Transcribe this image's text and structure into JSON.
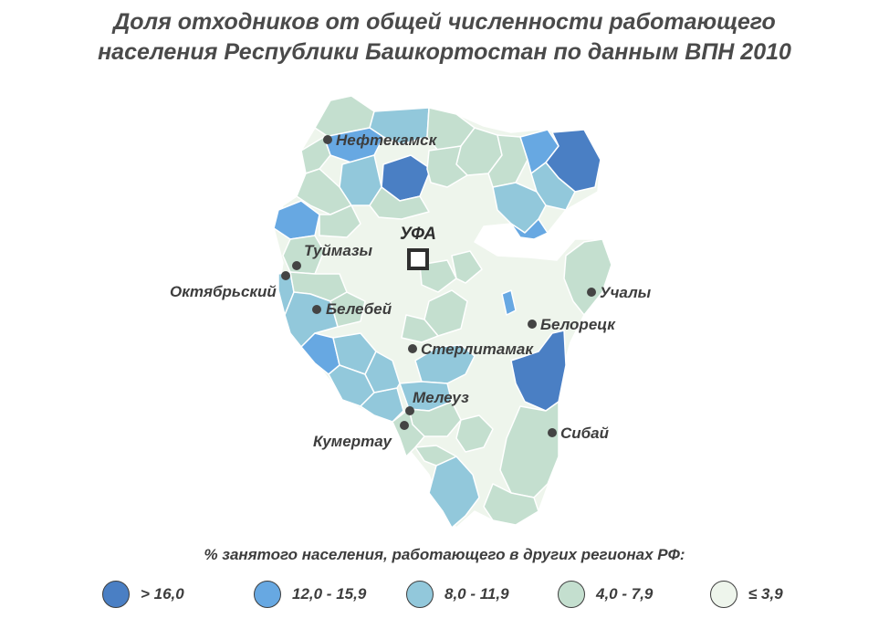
{
  "title": {
    "line1": "Доля отходников от общей численности работающего",
    "line2": "населения Республики Башкортостан по данным ВПН 2010"
  },
  "capital": {
    "label": "УФА"
  },
  "cities": {
    "neftekamsk": "Нефтекамск",
    "tuymazy": "Туймазы",
    "oktyabrsky": "Октябрьский",
    "belebey": "Белебей",
    "sterlitamak": "Стерлитамак",
    "meleuz": "Мелеуз",
    "kumertau": "Кумертау",
    "uchaly": "Учалы",
    "beloretsk": "Белорецк",
    "sibay": "Сибай"
  },
  "legend": {
    "title": "% занятого населения, работающего в других регионах РФ:",
    "classes": [
      {
        "label": "> 16,0",
        "color": "#4a7fc4"
      },
      {
        "label": "12,0 - 15,9",
        "color": "#67a8e2"
      },
      {
        "label": "8,0 - 11,9",
        "color": "#92c8db"
      },
      {
        "label": "4,0 - 7,9",
        "color": "#c4dfcf"
      },
      {
        "label": "≤ 3,9",
        "color": "#eef5ec"
      }
    ]
  },
  "colors": {
    "border": "#ffffff",
    "text": "#3d3d3d",
    "marker": "#444444"
  }
}
